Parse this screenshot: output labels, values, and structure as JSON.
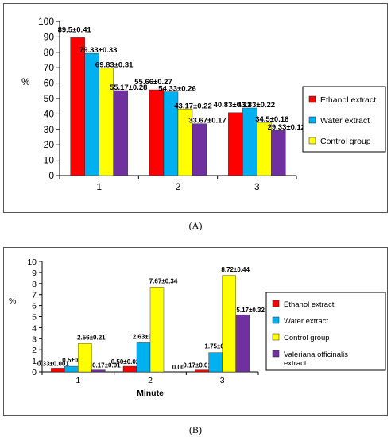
{
  "colors": {
    "ethanol": "#ff0000",
    "water": "#00b0f0",
    "control": "#ffff00",
    "valeriana": "#7030a0"
  },
  "chart_data": [
    {
      "type": "bar",
      "panel_caption": "(A)",
      "title": "",
      "xlabel": "",
      "ylabel": "%",
      "ylim": [
        0,
        100
      ],
      "yticks": [
        0,
        10,
        20,
        30,
        40,
        50,
        60,
        70,
        80,
        90,
        100
      ],
      "categories": [
        "1",
        "2",
        "3"
      ],
      "legend_position": "right",
      "grid": false,
      "series": [
        {
          "name": "Ethanol extract",
          "color": "#ff0000",
          "values": [
            89.5,
            55.66,
            40.83
          ],
          "labels": [
            "89.5±0.41",
            "55.66±0.27",
            "40.83±0.21"
          ]
        },
        {
          "name": "Water extract",
          "color": "#00b0f0",
          "values": [
            79.33,
            54.33,
            43.83
          ],
          "labels": [
            "79.33±0.33",
            "54.33±0.26",
            "43.83±0.22"
          ]
        },
        {
          "name": "Control group",
          "color": "#ffff00",
          "values": [
            69.83,
            43.17,
            34.5
          ],
          "labels": [
            "69.83±0.31",
            "43.17±0.22",
            "34.5±0.18"
          ]
        },
        {
          "name": "",
          "color": "#7030a0",
          "values": [
            55.17,
            33.67,
            29.33
          ],
          "labels": [
            "55.17±0.28",
            "33.67±0.17",
            "29.33±0.12"
          ]
        }
      ]
    },
    {
      "type": "bar",
      "panel_caption": "(B)",
      "title": "",
      "xlabel": "Minute",
      "ylabel": "%",
      "ylim": [
        0,
        10
      ],
      "yticks": [
        0,
        1,
        2,
        3,
        4,
        5,
        6,
        7,
        8,
        9,
        10
      ],
      "categories": [
        "1",
        "2",
        "3"
      ],
      "legend_position": "right",
      "grid": false,
      "series": [
        {
          "name": "Ethanol extract",
          "color": "#ff0000",
          "values": [
            0.33,
            0.5,
            0.17
          ],
          "labels": [
            "0.33±0.001",
            "0.50±0.02",
            "0.17±0.01"
          ]
        },
        {
          "name": "Water extract",
          "color": "#00b0f0",
          "values": [
            0.5,
            2.63,
            1.75
          ],
          "labels": [
            "0.5±0.01",
            "2.63±0.12",
            "1.75±0.12"
          ]
        },
        {
          "name": "Control group",
          "color": "#ffff00",
          "values": [
            2.56,
            7.67,
            8.72
          ],
          "labels": [
            "2.56±0.21",
            "7.67±0.34",
            "8.72±0.44"
          ]
        },
        {
          "name": "Valeriana officinalis extract",
          "color": "#7030a0",
          "values": [
            0.17,
            0.0,
            5.17
          ],
          "labels": [
            "0.17±0.01",
            "0.00",
            "5.17±0.32"
          ]
        }
      ]
    }
  ]
}
